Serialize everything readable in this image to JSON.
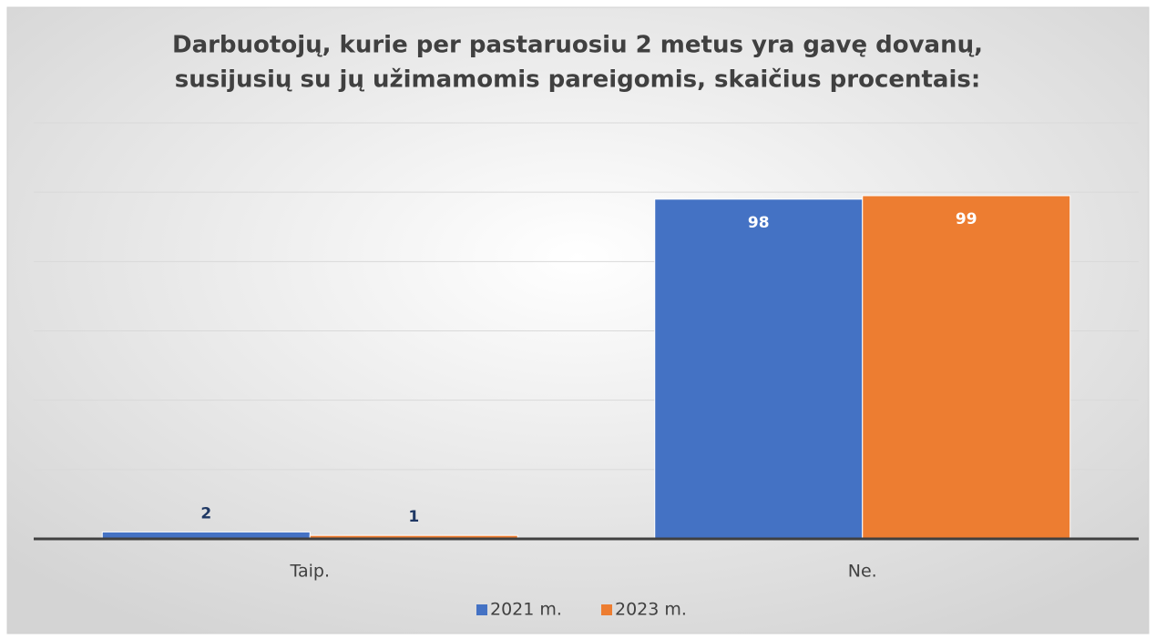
{
  "chart_data": {
    "type": "bar",
    "title": [
      "Darbuotojų, kurie per pastaruosiu 2 metus yra gavę dovanų,",
      "susijusių su jų užimamomis pareigomis, skaičius procentais:"
    ],
    "categories": [
      "Taip.",
      "Ne."
    ],
    "series": [
      {
        "name": "2021 m.",
        "color": "#4472c4",
        "values": [
          2,
          98
        ]
      },
      {
        "name": "2023 m.",
        "color": "#ed7d31",
        "values": [
          1,
          99
        ]
      }
    ],
    "ylim": [
      0,
      120
    ],
    "yticks": [
      0,
      20,
      40,
      60,
      80,
      100,
      120
    ],
    "grid": true,
    "legend": "bottom"
  }
}
